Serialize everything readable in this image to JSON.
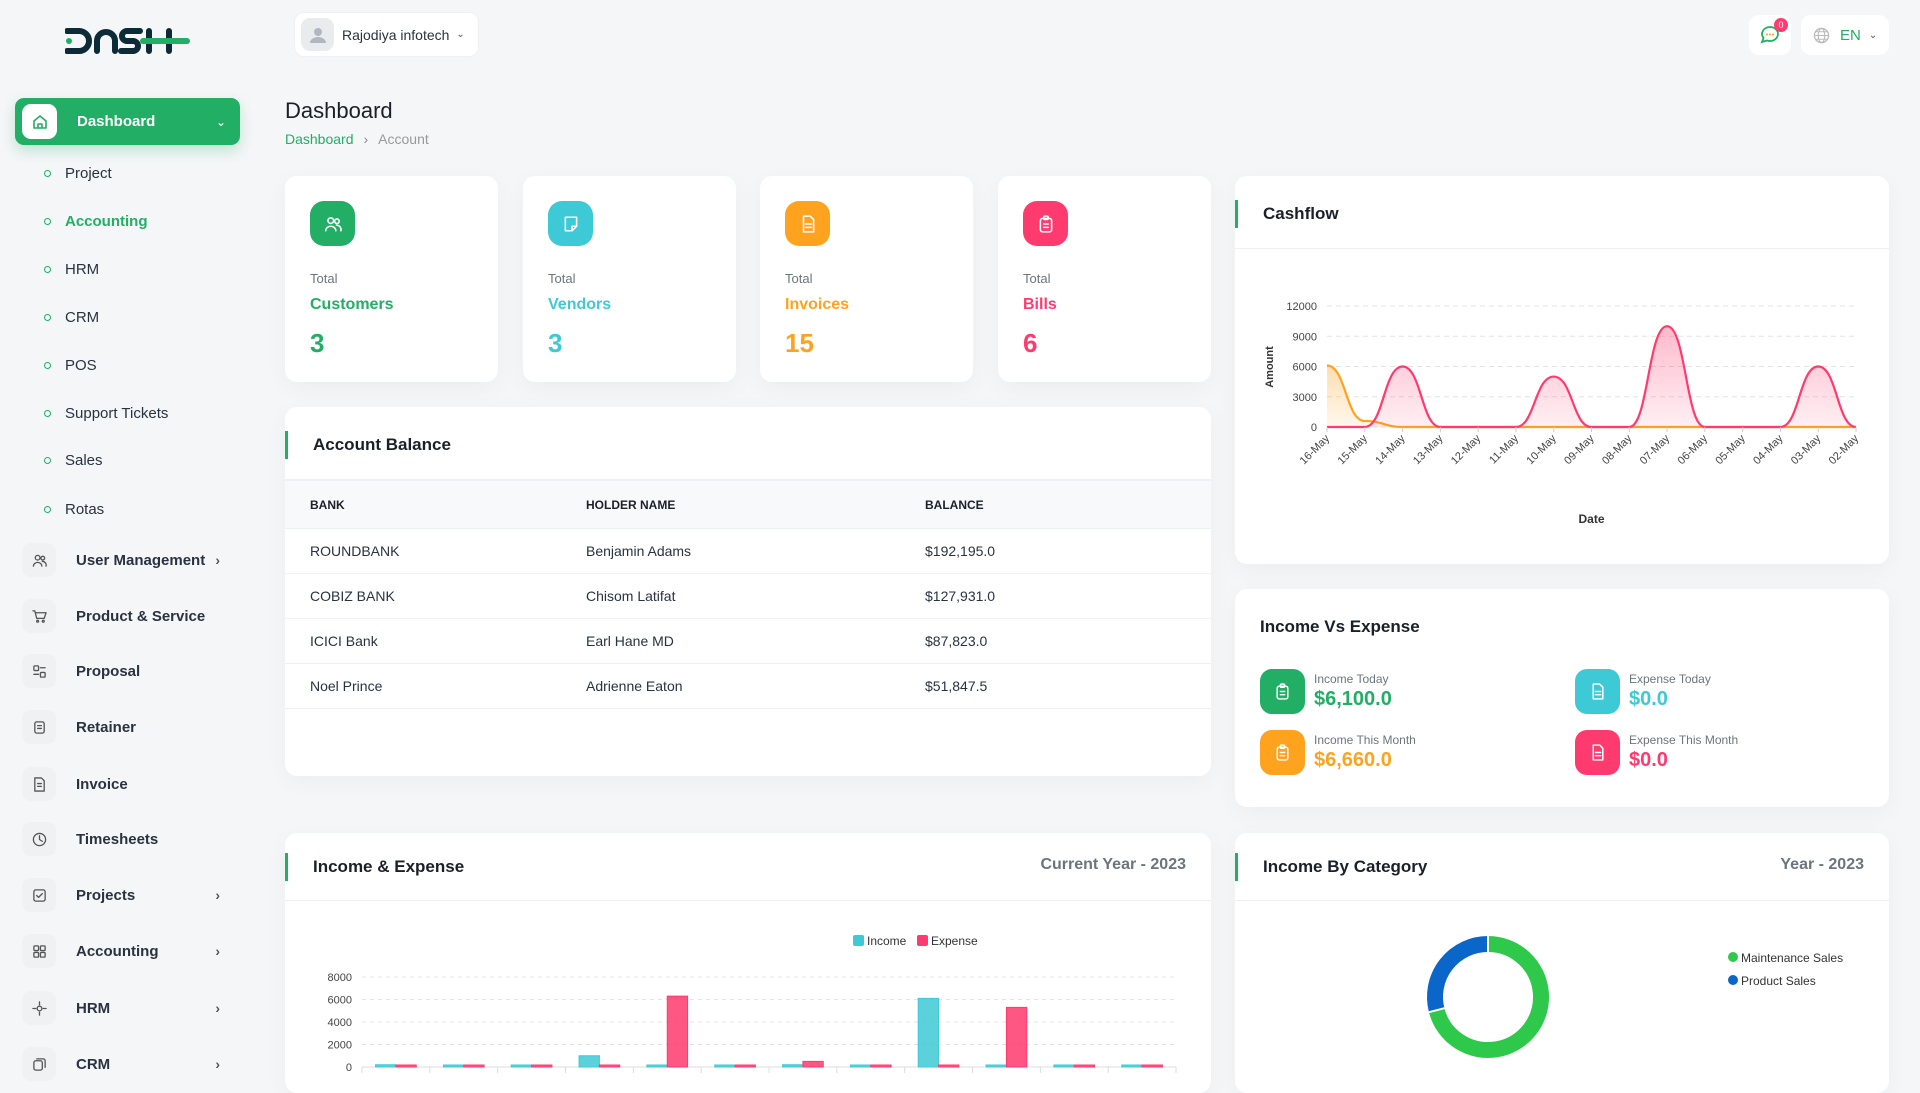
{
  "brand": {
    "logo_text": "DASH",
    "accent": "#22ae65"
  },
  "header": {
    "company": "Rajodiya infotech",
    "notifications": "0",
    "language": "EN"
  },
  "sidebar": {
    "dashboard": "Dashboard",
    "submenu": [
      {
        "label": "Project"
      },
      {
        "label": "Accounting",
        "active": true
      },
      {
        "label": "HRM"
      },
      {
        "label": "CRM"
      },
      {
        "label": "POS"
      },
      {
        "label": "Support Tickets"
      },
      {
        "label": "Sales"
      },
      {
        "label": "Rotas"
      }
    ],
    "menu": [
      {
        "label": "User Management",
        "icon": "users-icon",
        "chevron": true
      },
      {
        "label": "Product & Service",
        "icon": "cart-icon"
      },
      {
        "label": "Proposal",
        "icon": "proposal-icon"
      },
      {
        "label": "Retainer",
        "icon": "retainer-icon"
      },
      {
        "label": "Invoice",
        "icon": "invoice-icon"
      },
      {
        "label": "Timesheets",
        "icon": "clock-icon"
      },
      {
        "label": "Projects",
        "icon": "checklist-icon",
        "chevron": true
      },
      {
        "label": "Accounting",
        "icon": "grid-icon",
        "chevron": true
      },
      {
        "label": "HRM",
        "icon": "hrm-icon",
        "chevron": true
      },
      {
        "label": "CRM",
        "icon": "crm-icon",
        "chevron": true
      }
    ]
  },
  "page": {
    "title": "Dashboard",
    "breadcrumb": [
      "Dashboard",
      "Account"
    ]
  },
  "stats": [
    {
      "total": "Total",
      "label": "Customers",
      "value": "3",
      "color": "#22ae65",
      "icon": "users-icon"
    },
    {
      "total": "Total",
      "label": "Vendors",
      "value": "3",
      "color": "#3ec9d6",
      "icon": "note-icon"
    },
    {
      "total": "Total",
      "label": "Invoices",
      "value": "15",
      "color": "#ffa21d",
      "icon": "file-icon"
    },
    {
      "total": "Total",
      "label": "Bills",
      "value": "6",
      "color": "#ff3a6e",
      "icon": "clipboard-icon"
    }
  ],
  "account_balance": {
    "title": "Account Balance",
    "columns": [
      "BANK",
      "HOLDER NAME",
      "BALANCE"
    ],
    "rows": [
      [
        "ROUNDBANK",
        "Benjamin Adams",
        "$192,195.0"
      ],
      [
        "COBIZ BANK",
        "Chisom Latifat",
        "$127,931.0"
      ],
      [
        "ICICI Bank",
        "Earl Hane MD",
        "$87,823.0"
      ],
      [
        "Noel Prince",
        "Adrienne Eaton",
        "$51,847.5"
      ]
    ]
  },
  "income_vs_expense": {
    "title": "Income Vs Expense",
    "items": [
      {
        "label": "Income Today",
        "value": "$6,100.0",
        "color": "#22ae65"
      },
      {
        "label": "Expense Today",
        "value": "$0.0",
        "color": "#3ec9d6"
      },
      {
        "label": "Income This Month",
        "value": "$6,660.0",
        "color": "#ffa21d"
      },
      {
        "label": "Expense This Month",
        "value": "$0.0",
        "color": "#ff3a6e"
      }
    ]
  },
  "income_expense_card": {
    "title": "Income & Expense",
    "period": "Current Year - 2023"
  },
  "income_category_card": {
    "title": "Income By Category",
    "period": "Year - 2023"
  },
  "cashflow_card": {
    "title": "Cashflow"
  },
  "chart_data": [
    {
      "type": "area",
      "title": "Cashflow",
      "xlabel": "Date",
      "ylabel": "Amount",
      "ylim": [
        0,
        12000
      ],
      "yticks": [
        0,
        3000,
        6000,
        9000,
        12000
      ],
      "grid": true,
      "categories": [
        "16-May",
        "15-May",
        "14-May",
        "13-May",
        "12-May",
        "11-May",
        "10-May",
        "09-May",
        "08-May",
        "07-May",
        "06-May",
        "05-May",
        "04-May",
        "03-May",
        "02-May"
      ],
      "series": [
        {
          "color": "#ffa21d",
          "values": [
            6100,
            600,
            0,
            0,
            0,
            0,
            0,
            0,
            0,
            0,
            0,
            0,
            0,
            0,
            0
          ]
        },
        {
          "color": "#ff3a6e",
          "values": [
            0,
            0,
            6000,
            0,
            0,
            0,
            5000,
            0,
            0,
            10000,
            0,
            0,
            0,
            6000,
            0
          ]
        }
      ]
    },
    {
      "type": "bar",
      "ylim": [
        0,
        8000
      ],
      "yticks": [
        0,
        2000,
        4000,
        6000,
        8000
      ],
      "grid": true,
      "legend": "top-right",
      "categories_count": 12,
      "series": [
        {
          "name": "Income",
          "color": "#3ec9d6",
          "values": [
            200,
            0,
            0,
            1000,
            0,
            0,
            200,
            0,
            6100,
            0,
            0,
            0
          ]
        },
        {
          "name": "Expense",
          "color": "#ff3a6e",
          "values": [
            0,
            0,
            0,
            0,
            6300,
            0,
            500,
            0,
            0,
            5300,
            0,
            0
          ]
        }
      ]
    },
    {
      "type": "pie",
      "donut": true,
      "legend": "right",
      "series": [
        {
          "name": "Maintenance Sales",
          "color": "#2ec84a",
          "value": 71
        },
        {
          "name": "Product Sales",
          "color": "#0a66c8",
          "value": 29
        }
      ]
    }
  ]
}
